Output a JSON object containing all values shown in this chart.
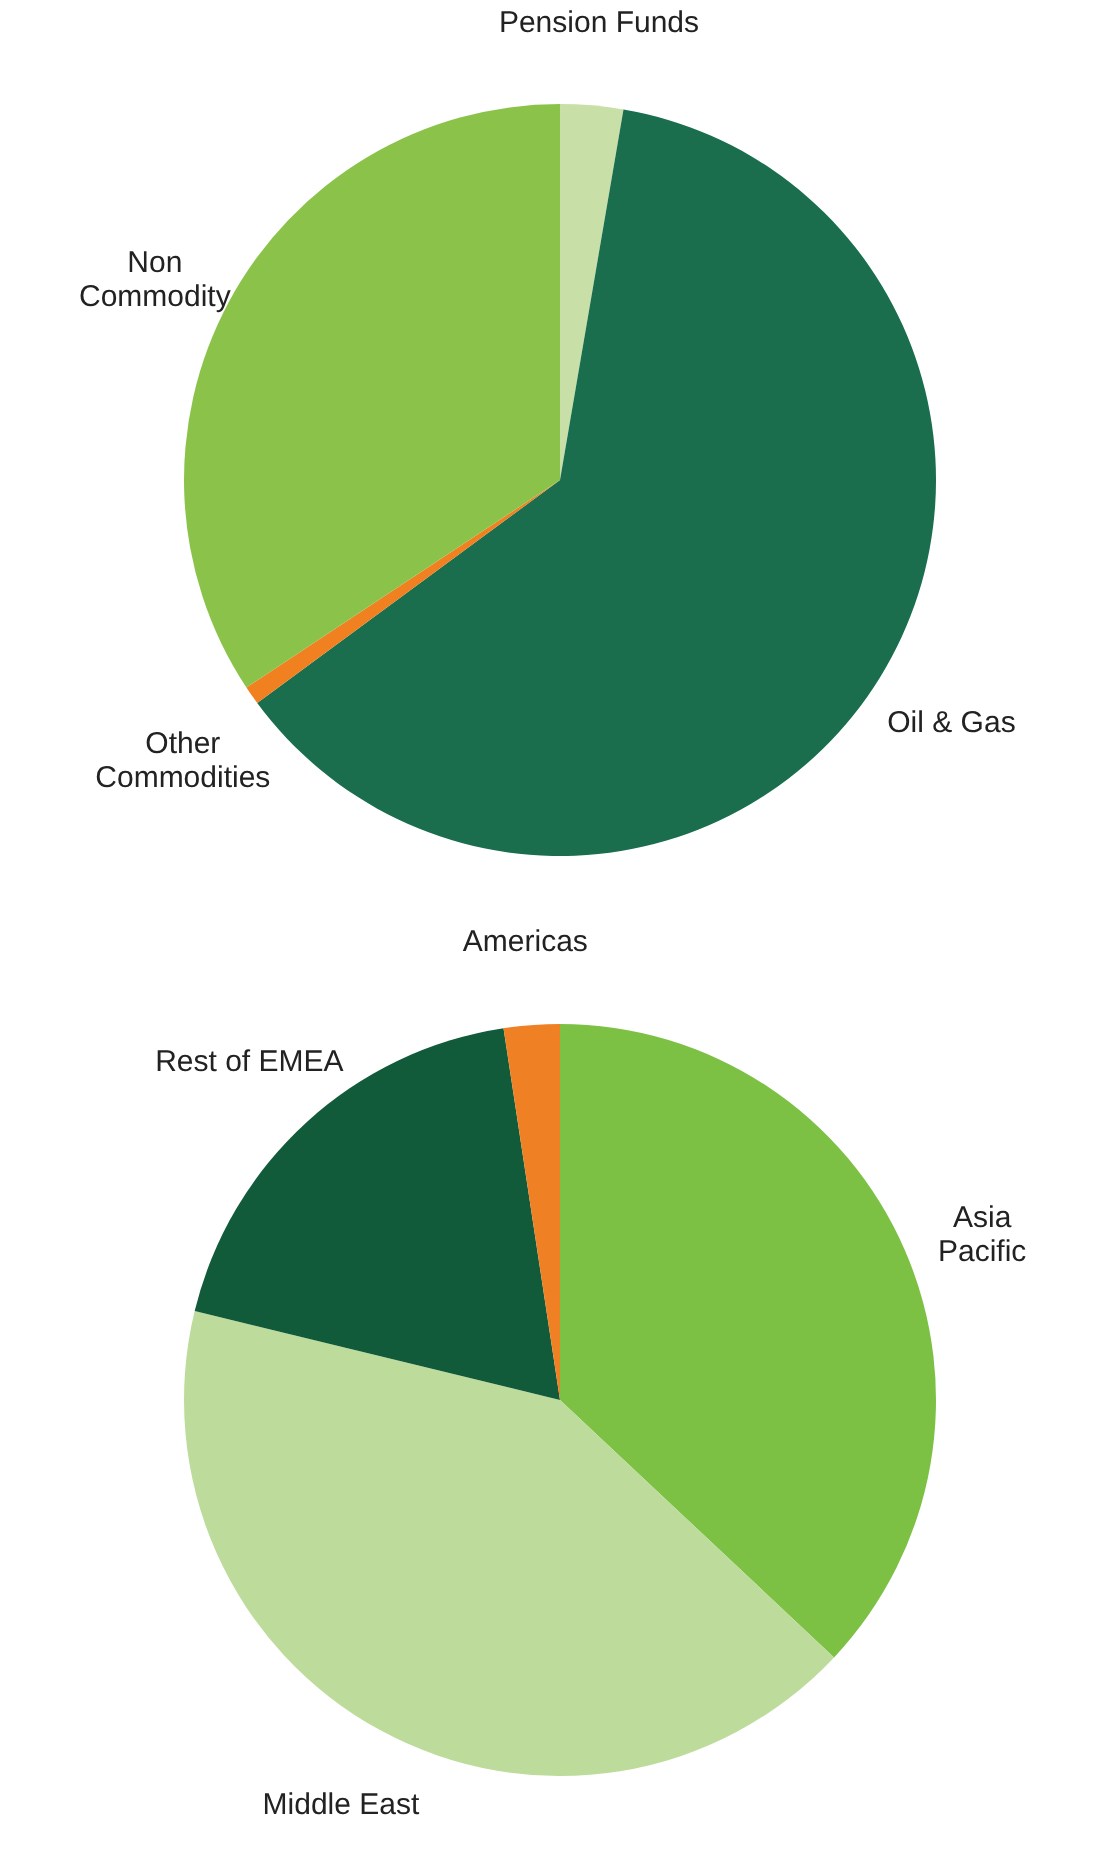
{
  "chart_data": [
    {
      "type": "pie",
      "categories": [
        "Pension Funds",
        "Oil & Gas",
        "Other\nCommodities",
        "Non\nCommodity"
      ],
      "values": [
        2.7,
        62.2,
        0.8,
        34.3
      ],
      "colors": [
        "#c8e0a8",
        "#1a6e4e",
        "#f08020",
        "#8bc34a"
      ]
    },
    {
      "type": "pie",
      "categories": [
        "Asia\nPacific",
        "Middle East",
        "Rest of EMEA",
        "Americas"
      ],
      "values": [
        37.0,
        41.8,
        18.8,
        2.4
      ],
      "colors": [
        "#7cc144",
        "#bddc9c",
        "#115a3a",
        "#f08024"
      ]
    }
  ]
}
